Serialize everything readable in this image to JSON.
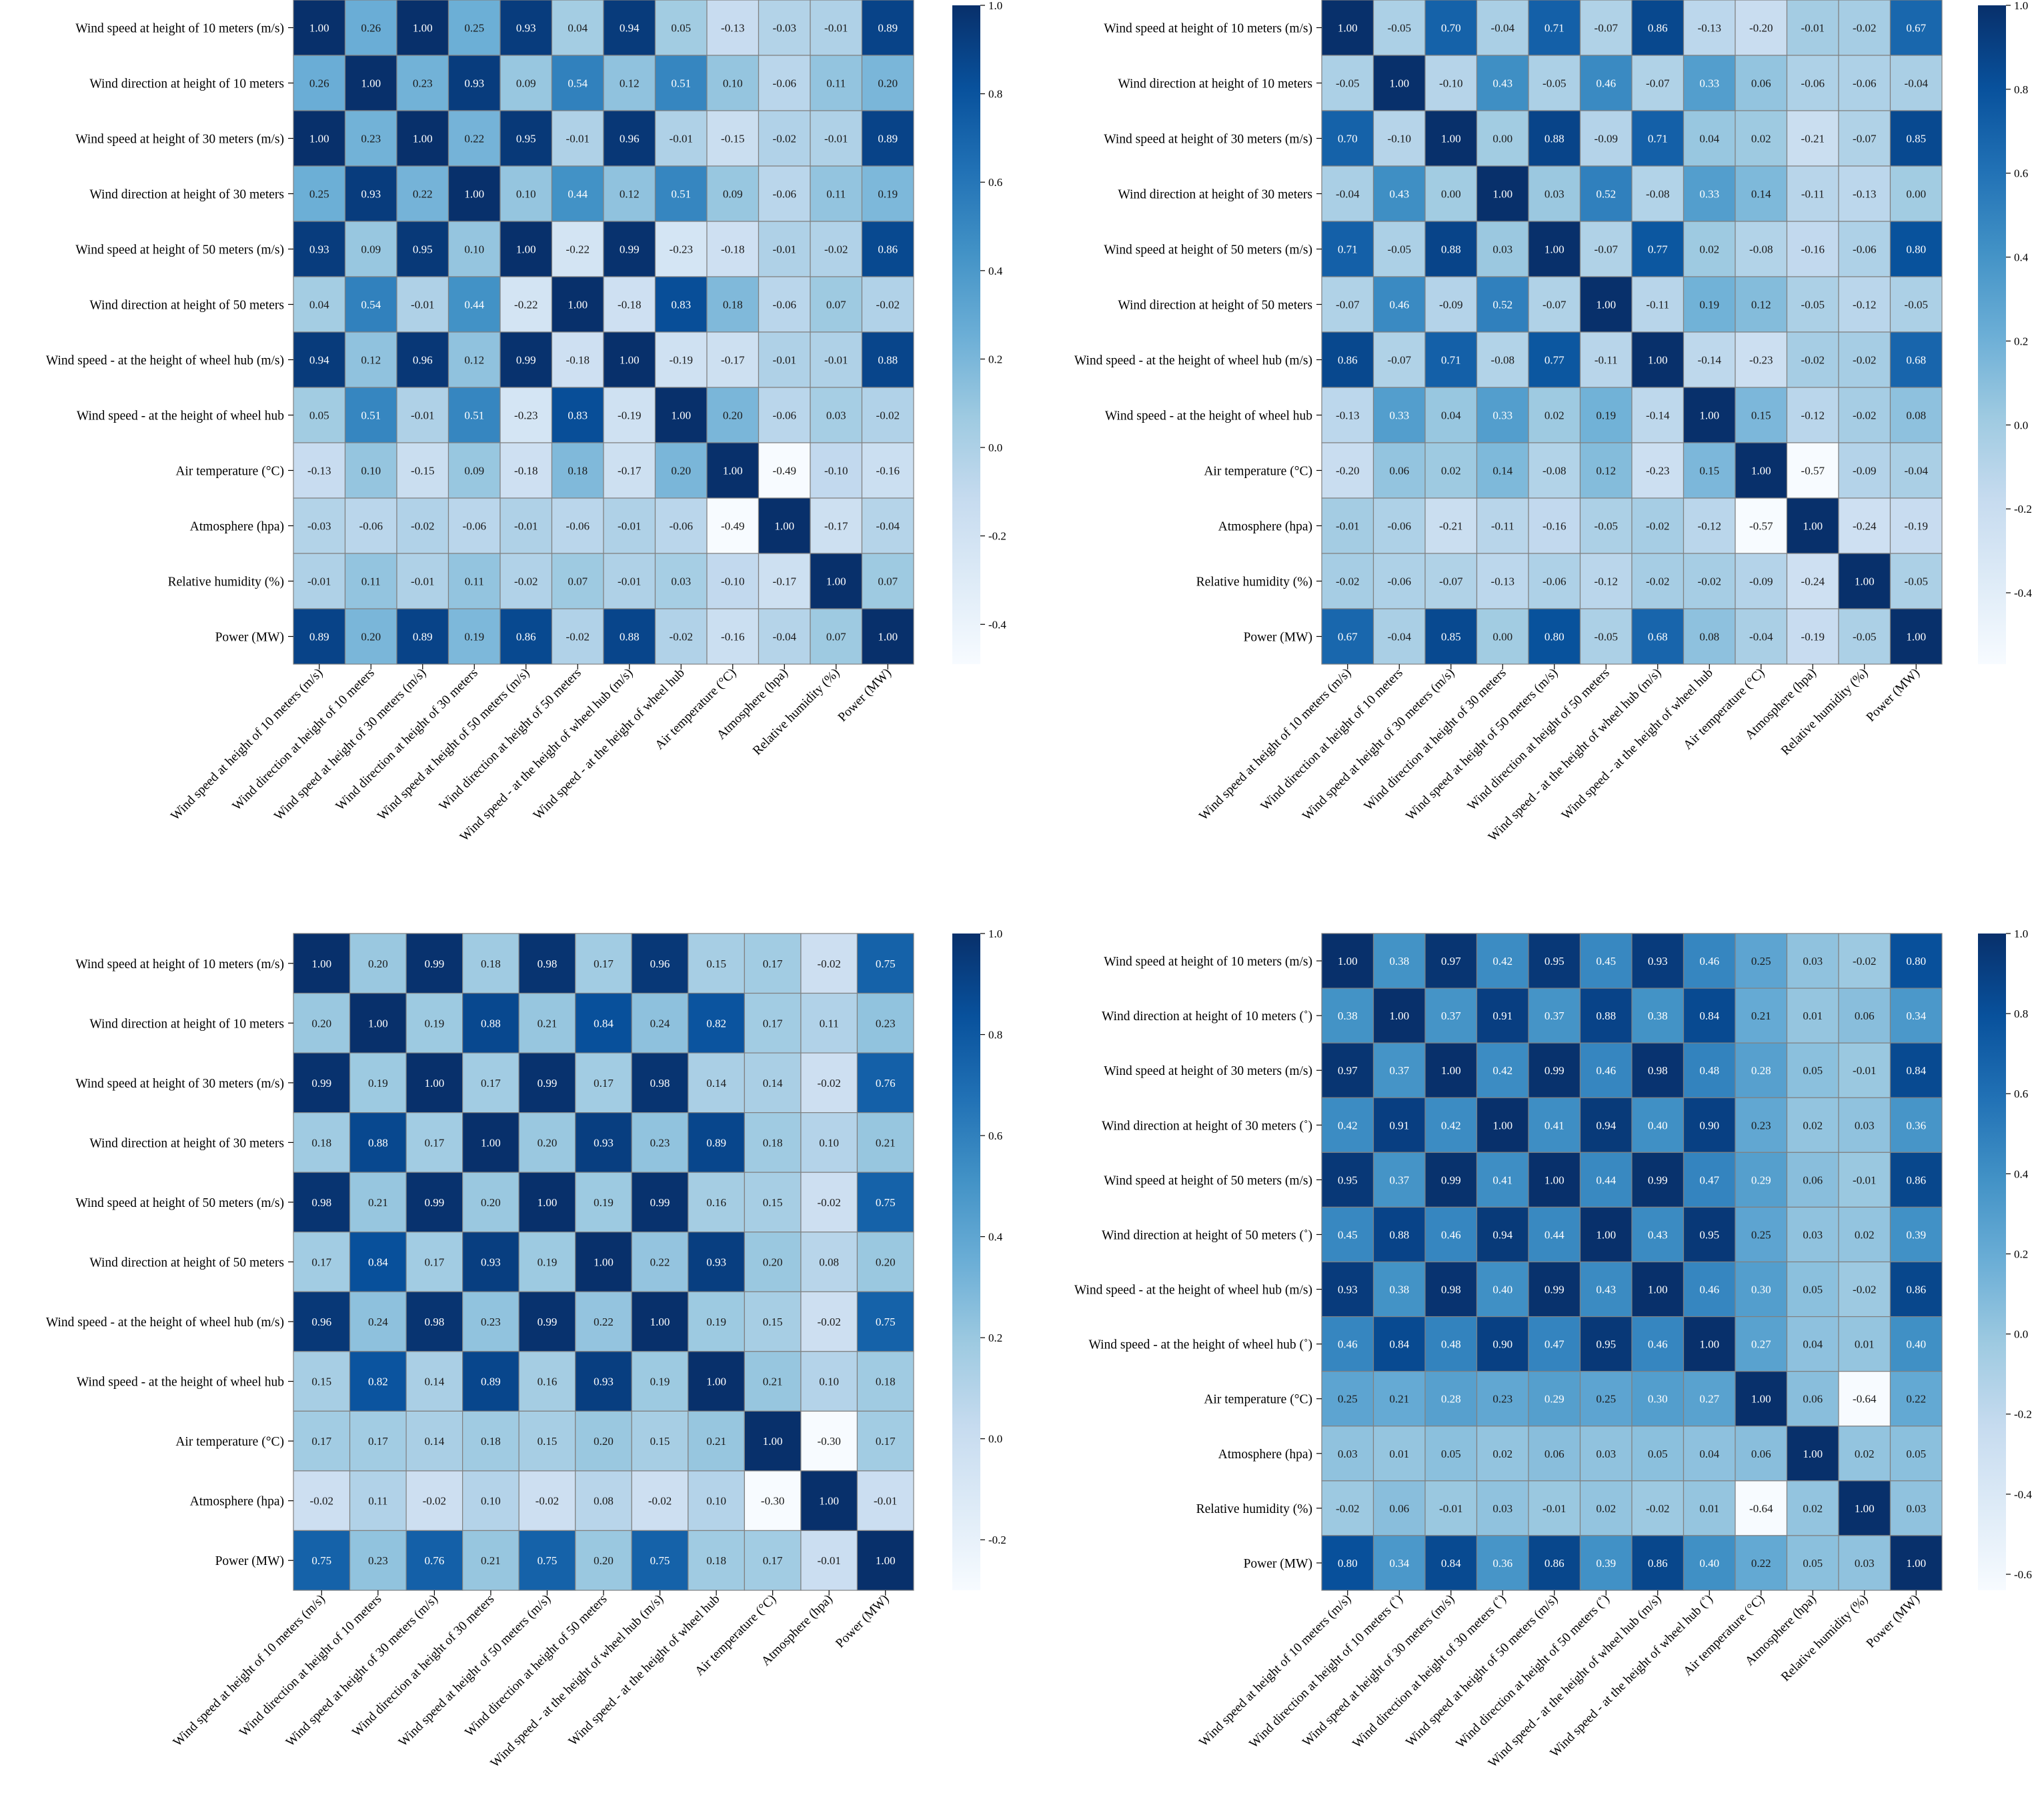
{
  "figure": {
    "description_free": true
  },
  "colorscale": {
    "name": "Blues",
    "stops": [
      "#f7fbff",
      "#deebf7",
      "#c6dbef",
      "#9ecae1",
      "#6baed6",
      "#4292c6",
      "#2171b5",
      "#08519c",
      "#08306b"
    ]
  },
  "chart_data": [
    {
      "type": "heatmap",
      "id": "panel-top-left",
      "labels": [
        "Wind speed at height of 10 meters (m/s)",
        "Wind direction at height of 10 meters",
        "Wind speed at height of 30 meters (m/s)",
        "Wind direction at height of 30 meters",
        "Wind speed at height of 50 meters (m/s)",
        "Wind direction at height of 50 meters",
        "Wind speed - at the height of wheel hub (m/s)",
        "Wind speed - at the height of wheel hub",
        "Air temperature  (°C)",
        "Atmosphere (hpa)",
        "Relative humidity (%)",
        "Power (MW)"
      ],
      "values": [
        [
          1.0,
          0.26,
          1.0,
          0.25,
          0.93,
          0.04,
          0.94,
          0.05,
          -0.13,
          -0.03,
          -0.01,
          0.89
        ],
        [
          0.26,
          1.0,
          0.23,
          0.93,
          0.09,
          0.54,
          0.12,
          0.51,
          0.1,
          -0.06,
          0.11,
          0.2
        ],
        [
          1.0,
          0.23,
          1.0,
          0.22,
          0.95,
          -0.01,
          0.96,
          -0.01,
          -0.15,
          -0.02,
          -0.01,
          0.89
        ],
        [
          0.25,
          0.93,
          0.22,
          1.0,
          0.1,
          0.44,
          0.12,
          0.51,
          0.09,
          -0.06,
          0.11,
          0.19
        ],
        [
          0.93,
          0.09,
          0.95,
          0.1,
          1.0,
          -0.22,
          0.99,
          -0.23,
          -0.18,
          -0.01,
          -0.02,
          0.86
        ],
        [
          0.04,
          0.54,
          -0.01,
          0.44,
          -0.22,
          1.0,
          -0.18,
          0.83,
          0.18,
          -0.06,
          0.07,
          -0.02
        ],
        [
          0.94,
          0.12,
          0.96,
          0.12,
          0.99,
          -0.18,
          1.0,
          -0.19,
          -0.17,
          -0.01,
          -0.01,
          0.88
        ],
        [
          0.05,
          0.51,
          -0.01,
          0.51,
          -0.23,
          0.83,
          -0.19,
          1.0,
          0.2,
          -0.06,
          0.03,
          -0.02
        ],
        [
          -0.13,
          0.1,
          -0.15,
          0.09,
          -0.18,
          0.18,
          -0.17,
          0.2,
          1.0,
          -0.49,
          -0.1,
          -0.16
        ],
        [
          -0.03,
          -0.06,
          -0.02,
          -0.06,
          -0.01,
          -0.06,
          -0.01,
          -0.06,
          -0.49,
          1.0,
          -0.17,
          -0.04
        ],
        [
          -0.01,
          0.11,
          -0.01,
          0.11,
          -0.02,
          0.07,
          -0.01,
          0.03,
          -0.1,
          -0.17,
          1.0,
          0.07
        ],
        [
          0.89,
          0.2,
          0.89,
          0.19,
          0.86,
          -0.02,
          0.88,
          -0.02,
          -0.16,
          -0.04,
          0.07,
          1.0
        ]
      ],
      "colorbar": {
        "vmin": -0.49,
        "vmax": 1.0,
        "ticks": [
          "-0.4",
          "-0.2",
          "0.0",
          "0.2",
          "0.4",
          "0.6",
          "0.8",
          "1.0"
        ]
      }
    },
    {
      "type": "heatmap",
      "id": "panel-top-right",
      "labels": [
        "Wind speed at height of 10 meters (m/s)",
        "Wind direction at height of 10 meters",
        "Wind speed at height of 30 meters (m/s)",
        "Wind direction at height of 30 meters",
        "Wind speed at height of 50 meters (m/s)",
        "Wind direction at height of 50 meters",
        "Wind speed - at the height of wheel hub (m/s)",
        "Wind speed - at the height of wheel hub",
        "Air temperature  (°C)",
        "Atmosphere (hpa)",
        "Relative humidity (%)",
        "Power (MW)"
      ],
      "values": [
        [
          1.0,
          -0.05,
          0.7,
          -0.04,
          0.71,
          -0.07,
          0.86,
          -0.13,
          -0.2,
          -0.01,
          -0.02,
          0.67
        ],
        [
          -0.05,
          1.0,
          -0.1,
          0.43,
          -0.05,
          0.46,
          -0.07,
          0.33,
          0.06,
          -0.06,
          -0.06,
          -0.04
        ],
        [
          0.7,
          -0.1,
          1.0,
          0.0,
          0.88,
          -0.09,
          0.71,
          0.04,
          0.02,
          -0.21,
          -0.07,
          0.85
        ],
        [
          -0.04,
          0.43,
          0.0,
          1.0,
          0.03,
          0.52,
          -0.08,
          0.33,
          0.14,
          -0.11,
          -0.13,
          -0.0
        ],
        [
          0.71,
          -0.05,
          0.88,
          0.03,
          1.0,
          -0.07,
          0.77,
          0.02,
          -0.08,
          -0.16,
          -0.06,
          0.8
        ],
        [
          -0.07,
          0.46,
          -0.09,
          0.52,
          -0.07,
          1.0,
          -0.11,
          0.19,
          0.12,
          -0.05,
          -0.12,
          -0.05
        ],
        [
          0.86,
          -0.07,
          0.71,
          -0.08,
          0.77,
          -0.11,
          1.0,
          -0.14,
          -0.23,
          -0.02,
          -0.02,
          0.68
        ],
        [
          -0.13,
          0.33,
          0.04,
          0.33,
          0.02,
          0.19,
          -0.14,
          1.0,
          0.15,
          -0.12,
          -0.02,
          0.08
        ],
        [
          -0.2,
          0.06,
          0.02,
          0.14,
          -0.08,
          0.12,
          -0.23,
          0.15,
          1.0,
          -0.57,
          -0.09,
          -0.04
        ],
        [
          -0.01,
          -0.06,
          -0.21,
          -0.11,
          -0.16,
          -0.05,
          -0.02,
          -0.12,
          -0.57,
          1.0,
          -0.24,
          -0.19
        ],
        [
          -0.02,
          -0.06,
          -0.07,
          -0.13,
          -0.06,
          -0.12,
          -0.02,
          -0.02,
          -0.09,
          -0.24,
          1.0,
          -0.05
        ],
        [
          0.67,
          -0.04,
          0.85,
          -0.0,
          0.8,
          -0.05,
          0.68,
          0.08,
          -0.04,
          -0.19,
          -0.05,
          1.0
        ]
      ],
      "colorbar": {
        "vmin": -0.57,
        "vmax": 1.0,
        "ticks": [
          "-0.4",
          "-0.2",
          "0.0",
          "0.2",
          "0.4",
          "0.6",
          "0.8",
          "1.0"
        ]
      }
    },
    {
      "type": "heatmap",
      "id": "panel-bottom-left",
      "labels": [
        "Wind speed at height of 10 meters (m/s)",
        "Wind direction at height of 10 meters",
        "Wind speed at height of 30 meters (m/s)",
        "Wind direction at height of 30 meters",
        "Wind speed at height of 50 meters (m/s)",
        "Wind direction at height of 50 meters",
        "Wind speed - at the height of wheel hub  (m/s)",
        "Wind speed - at the height of wheel hub",
        "Air temperature  (°C)",
        "Atmosphere (hpa)",
        "Power (MW)"
      ],
      "values": [
        [
          1.0,
          0.2,
          0.99,
          0.18,
          0.98,
          0.17,
          0.96,
          0.15,
          0.17,
          -0.02,
          0.75
        ],
        [
          0.2,
          1.0,
          0.19,
          0.88,
          0.21,
          0.84,
          0.24,
          0.82,
          0.17,
          0.11,
          0.23
        ],
        [
          0.99,
          0.19,
          1.0,
          0.17,
          0.99,
          0.17,
          0.98,
          0.14,
          0.14,
          -0.02,
          0.76
        ],
        [
          0.18,
          0.88,
          0.17,
          1.0,
          0.2,
          0.93,
          0.23,
          0.89,
          0.18,
          0.1,
          0.21
        ],
        [
          0.98,
          0.21,
          0.99,
          0.2,
          1.0,
          0.19,
          0.99,
          0.16,
          0.15,
          -0.02,
          0.75
        ],
        [
          0.17,
          0.84,
          0.17,
          0.93,
          0.19,
          1.0,
          0.22,
          0.93,
          0.2,
          0.08,
          0.2
        ],
        [
          0.96,
          0.24,
          0.98,
          0.23,
          0.99,
          0.22,
          1.0,
          0.19,
          0.15,
          -0.02,
          0.75
        ],
        [
          0.15,
          0.82,
          0.14,
          0.89,
          0.16,
          0.93,
          0.19,
          1.0,
          0.21,
          0.1,
          0.18
        ],
        [
          0.17,
          0.17,
          0.14,
          0.18,
          0.15,
          0.2,
          0.15,
          0.21,
          1.0,
          -0.3,
          0.17
        ],
        [
          -0.02,
          0.11,
          -0.02,
          0.1,
          -0.02,
          0.08,
          -0.02,
          0.1,
          -0.3,
          1.0,
          -0.01
        ],
        [
          0.75,
          0.23,
          0.76,
          0.21,
          0.75,
          0.2,
          0.75,
          0.18,
          0.17,
          -0.01,
          1.0
        ]
      ],
      "colorbar": {
        "vmin": -0.3,
        "vmax": 1.0,
        "ticks": [
          "-0.2",
          "0.0",
          "0.2",
          "0.4",
          "0.6",
          "0.8",
          "1.0"
        ]
      }
    },
    {
      "type": "heatmap",
      "id": "panel-bottom-right",
      "labels": [
        "Wind speed at height of 10 meters (m/s)",
        "Wind direction at height of 10 meters (˚)",
        "Wind speed at height of 30 meters (m/s)",
        "Wind direction at height of 30 meters (˚)",
        "Wind speed at height of 50 meters (m/s)",
        "Wind direction at height of 50 meters (˚)",
        "Wind speed - at the height of wheel hub (m/s)",
        "Wind speed - at the height of wheel hub (˚)",
        "Air temperature  (°C)",
        "Atmosphere (hpa)",
        "Relative humidity (%)",
        "Power (MW)"
      ],
      "values": [
        [
          1.0,
          0.38,
          0.97,
          0.42,
          0.95,
          0.45,
          0.93,
          0.46,
          0.25,
          0.03,
          -0.02,
          0.8
        ],
        [
          0.38,
          1.0,
          0.37,
          0.91,
          0.37,
          0.88,
          0.38,
          0.84,
          0.21,
          0.01,
          0.06,
          0.34
        ],
        [
          0.97,
          0.37,
          1.0,
          0.42,
          0.99,
          0.46,
          0.98,
          0.48,
          0.28,
          0.05,
          -0.01,
          0.84
        ],
        [
          0.42,
          0.91,
          0.42,
          1.0,
          0.41,
          0.94,
          0.4,
          0.9,
          0.23,
          0.02,
          0.03,
          0.36
        ],
        [
          0.95,
          0.37,
          0.99,
          0.41,
          1.0,
          0.44,
          0.99,
          0.47,
          0.29,
          0.06,
          -0.01,
          0.86
        ],
        [
          0.45,
          0.88,
          0.46,
          0.94,
          0.44,
          1.0,
          0.43,
          0.95,
          0.25,
          0.03,
          0.02,
          0.39
        ],
        [
          0.93,
          0.38,
          0.98,
          0.4,
          0.99,
          0.43,
          1.0,
          0.46,
          0.3,
          0.05,
          -0.02,
          0.86
        ],
        [
          0.46,
          0.84,
          0.48,
          0.9,
          0.47,
          0.95,
          0.46,
          1.0,
          0.27,
          0.04,
          0.01,
          0.4
        ],
        [
          0.25,
          0.21,
          0.28,
          0.23,
          0.29,
          0.25,
          0.3,
          0.27,
          1.0,
          0.06,
          -0.64,
          0.22
        ],
        [
          0.03,
          0.01,
          0.05,
          0.02,
          0.06,
          0.03,
          0.05,
          0.04,
          0.06,
          1.0,
          0.02,
          0.05
        ],
        [
          -0.02,
          0.06,
          -0.01,
          0.03,
          -0.01,
          0.02,
          -0.02,
          0.01,
          -0.64,
          0.02,
          1.0,
          0.03
        ],
        [
          0.8,
          0.34,
          0.84,
          0.36,
          0.86,
          0.39,
          0.86,
          0.4,
          0.22,
          0.05,
          0.03,
          1.0
        ]
      ],
      "colorbar": {
        "vmin": -0.64,
        "vmax": 1.0,
        "ticks": [
          "-0.6",
          "-0.4",
          "-0.2",
          "0.0",
          "0.2",
          "0.4",
          "0.6",
          "0.8",
          "1.0"
        ]
      }
    }
  ]
}
